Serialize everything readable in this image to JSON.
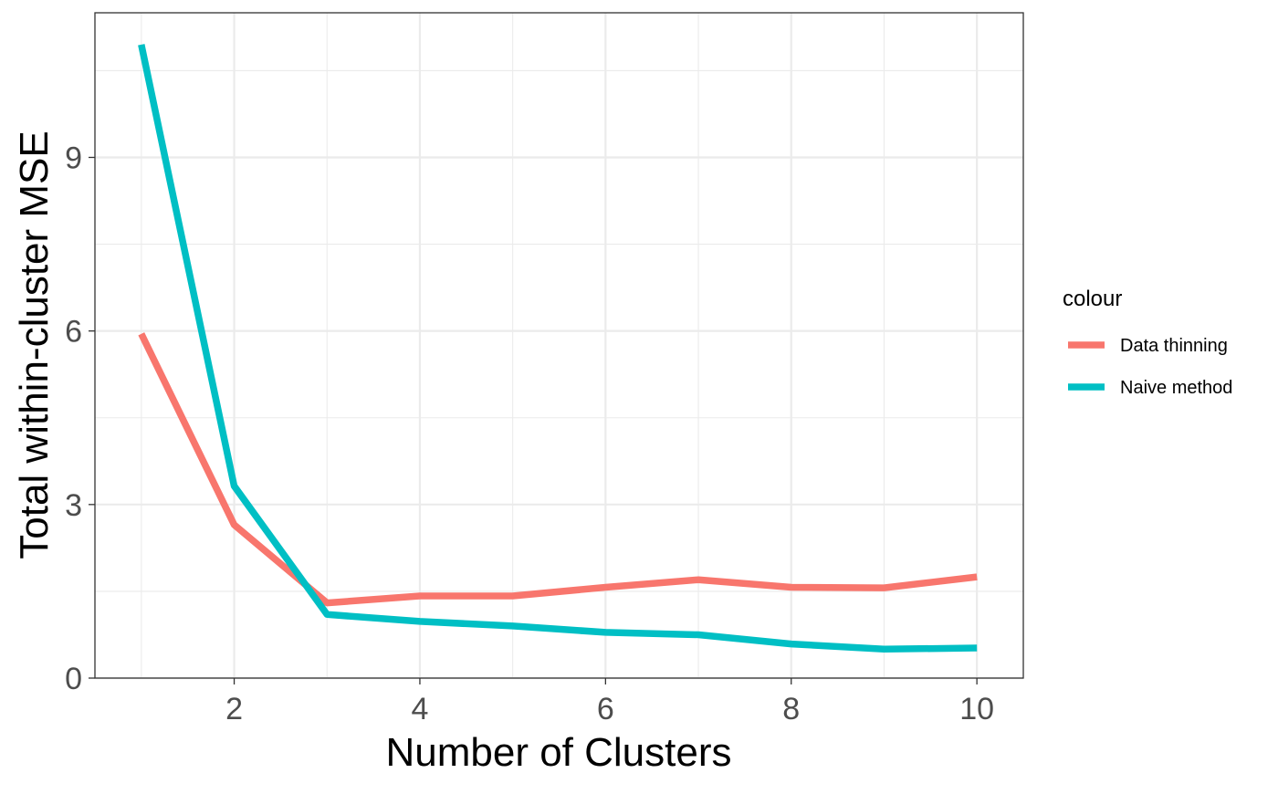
{
  "chart_data": {
    "type": "line",
    "title": "",
    "xlabel": "Number of Clusters",
    "ylabel": "Total within-cluster MSE",
    "xlim": [
      0.5,
      10.5
    ],
    "ylim": [
      0,
      11.5
    ],
    "x_ticks": [
      2,
      4,
      6,
      8,
      10
    ],
    "x_tick_labels": [
      "2",
      "4",
      "6",
      "8",
      "10"
    ],
    "y_ticks": [
      0,
      3,
      6,
      9
    ],
    "y_tick_labels": [
      "0",
      "3",
      "6",
      "9"
    ],
    "grid": true,
    "legend": {
      "title": "colour",
      "placement": "right"
    },
    "series": [
      {
        "name": "Data thinning",
        "color": "#F8766D",
        "x": [
          1,
          2,
          3,
          4,
          5,
          6,
          7,
          8,
          9,
          10
        ],
        "values": [
          5.95,
          2.65,
          1.3,
          1.42,
          1.42,
          1.57,
          1.7,
          1.57,
          1.56,
          1.75
        ]
      },
      {
        "name": "Naive method",
        "color": "#00BFC4",
        "x": [
          1,
          2,
          3,
          4,
          5,
          6,
          7,
          8,
          9,
          10
        ],
        "values": [
          10.95,
          3.32,
          1.1,
          0.98,
          0.9,
          0.79,
          0.75,
          0.59,
          0.5,
          0.52
        ]
      }
    ]
  }
}
